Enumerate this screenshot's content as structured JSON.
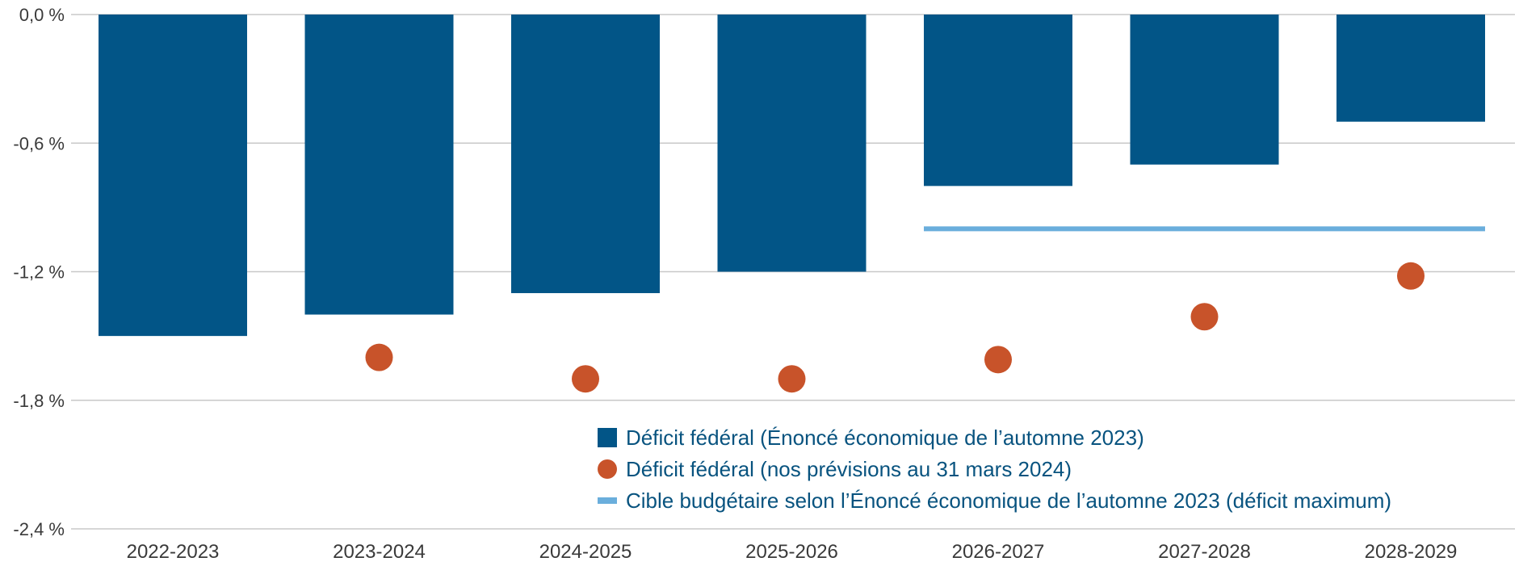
{
  "colors": {
    "bar": "#025587",
    "dot": "#c8532a",
    "target": "#6aaedc",
    "grid": "#c8c8c8",
    "axis_text": "#3a3a3a",
    "legend_text": "#08537f"
  },
  "chart_data": {
    "type": "bar",
    "title": "",
    "xlabel": "",
    "ylabel": "",
    "ylim": [
      -2.4,
      0
    ],
    "grid": "horizontal",
    "legend_position": "bottom-right",
    "y_ticks": [
      0,
      -0.6,
      -1.2,
      -1.8,
      -2.4
    ],
    "y_tick_labels": [
      "0,0 %",
      "-0,6 %",
      "-1,2 %",
      "-1,8 %",
      "-2,4 %"
    ],
    "categories": [
      "2022-2023",
      "2023-2024",
      "2024-2025",
      "2025-2026",
      "2026-2027",
      "2027-2028",
      "2028-2029"
    ],
    "series": [
      {
        "name": "Déficit fédéral (Énoncé économique de l’automne 2023)",
        "type": "bar",
        "values": [
          -1.5,
          -1.4,
          -1.3,
          -1.2,
          -0.8,
          -0.7,
          -0.5
        ]
      },
      {
        "name": "Déficit fédéral (nos prévisions au 31 mars 2024)",
        "type": "scatter",
        "values": [
          null,
          -1.6,
          -1.7,
          -1.7,
          -1.61,
          -1.41,
          -1.22
        ]
      },
      {
        "name": "Cible budgétaire selon l’Énoncé économique de l’automne 2023 (déficit maximum)",
        "type": "line",
        "x_range": [
          "2026-2027",
          "2028-2029"
        ],
        "value": -1.0
      }
    ]
  }
}
